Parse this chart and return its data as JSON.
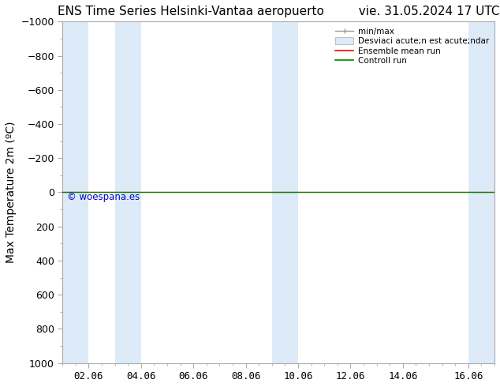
{
  "title": "ENS Time Series Helsinki-Vantaa aeropuerto         vie. 31.05.2024 17 UTC",
  "ylabel": "Max Temperature 2m (ºC)",
  "watermark": "© woespana.es",
  "ylim_bottom": 1000,
  "ylim_top": -1000,
  "ytick_step": 200,
  "bg_color": "#ffffff",
  "plot_bg_color": "#ffffff",
  "shaded_color": "#ddeaf7",
  "control_run_y": 0,
  "ensemble_mean_y": 0,
  "legend_labels": [
    "min/max",
    "Desviaci acute;n est acute;ndar",
    "Ensemble mean run",
    "Controll run"
  ],
  "x_min": 0.0,
  "x_max": 16.5,
  "n_days": 16,
  "title_fontsize": 11,
  "axis_label_fontsize": 10,
  "tick_fontsize": 9,
  "watermark_color": "#0000cc",
  "border_color": "#aaaaaa",
  "shaded_bands": [
    [
      0.0,
      1.0
    ],
    [
      2.0,
      1.0
    ],
    [
      8.0,
      1.0
    ],
    [
      15.5,
      1.0
    ]
  ],
  "xtick_positions": [
    1.0,
    3.0,
    5.0,
    7.0,
    9.0,
    11.0,
    13.0,
    15.5
  ],
  "xtick_labels": [
    "02.06",
    "04.06",
    "06.06",
    "08.06",
    "10.06",
    "12.06",
    "14.06",
    "16.06"
  ]
}
